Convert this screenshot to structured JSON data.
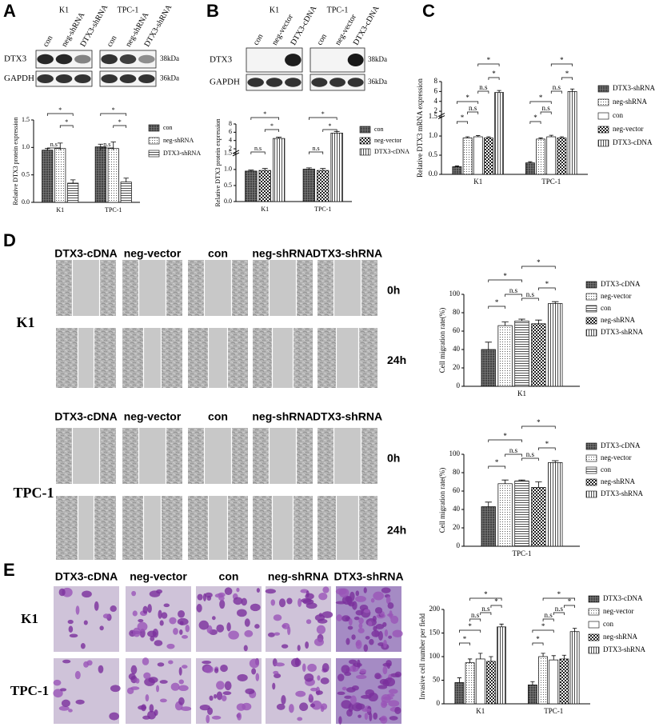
{
  "panel_labels": [
    "A",
    "B",
    "C",
    "D",
    "E"
  ],
  "blots": [
    {
      "groups": [
        "K1",
        "TPC-1"
      ],
      "lanes": [
        "con",
        "neg-shRNA",
        "DTX3-shRNA"
      ],
      "proteins": [
        "DTX3",
        "GAPDH"
      ],
      "sizes": [
        "38kDa",
        "36kDa"
      ]
    },
    {
      "groups": [
        "K1",
        "TPC-1"
      ],
      "lanes": [
        "con",
        "neg-vector",
        "DTX3-cDNA"
      ],
      "proteins": [
        "DTX3",
        "GAPDH"
      ],
      "sizes": [
        "38kDa",
        "36kDa"
      ]
    }
  ],
  "migration": {
    "columns": [
      "DTX3-cDNA",
      "neg-vector",
      "con",
      "neg-shRNA",
      "DTX3-shRNA"
    ],
    "rows": [
      "K1",
      "TPC-1"
    ],
    "times": [
      "0h",
      "24h"
    ]
  },
  "invasion": {
    "columns": [
      "DTX3-cDNA",
      "neg-vector",
      "con",
      "neg-shRNA",
      "DTX3-shRNA"
    ],
    "rows": [
      "K1",
      "TPC-1"
    ]
  },
  "chart_data": [
    {
      "type": "bar",
      "ylabel": "Relative DTX3 protein expression",
      "categories": [
        "K1",
        "TPC-1"
      ],
      "series": [
        {
          "name": "con",
          "pattern": "dark-grid",
          "values": [
            0.95,
            1.01
          ],
          "errors": [
            0.03,
            0.05
          ]
        },
        {
          "name": "neg-shRNA",
          "pattern": "dots",
          "values": [
            0.98,
            0.98
          ],
          "errors": [
            0.1,
            0.12
          ]
        },
        {
          "name": "DTX3-shRNA",
          "pattern": "hlines",
          "values": [
            0.35,
            0.37
          ],
          "errors": [
            0.06,
            0.07
          ]
        }
      ],
      "ylim": [
        0,
        1.5
      ],
      "yticks": [
        {
          "value": 0,
          "label": "0.0"
        },
        0.5,
        {
          "value": 1,
          "label": "1.0"
        },
        1.5
      ],
      "annotations": [
        "*",
        "*",
        "n.s",
        "*",
        "*",
        "n.s"
      ]
    },
    {
      "type": "bar",
      "ylabel": "Relative DTX3 protein expression",
      "categories": [
        "K1",
        "TPC-1"
      ],
      "series": [
        {
          "name": "con",
          "pattern": "dark-grid",
          "values": [
            0.95,
            1.01
          ],
          "errors": [
            0.03,
            0.04
          ]
        },
        {
          "name": "neg-vector",
          "pattern": "checker",
          "values": [
            0.97,
            0.97
          ],
          "errors": [
            0.06,
            0.06
          ]
        },
        {
          "name": "DTX3-cDNA",
          "pattern": "vlines",
          "values": [
            4.5,
            5.8
          ],
          "errors": [
            0.3,
            0.4
          ]
        }
      ],
      "ylim": [
        0,
        8
      ],
      "ysegments": [
        [
          0,
          1.5
        ],
        [
          2,
          8
        ]
      ],
      "yticks": [
        {
          "value": 0,
          "label": "0.0"
        },
        0.5,
        {
          "value": 1,
          "label": "1.0"
        },
        1.5,
        2,
        4,
        6,
        8
      ],
      "annotations": [
        "*",
        "*",
        "n.s",
        "*",
        "*",
        "n.s"
      ]
    },
    {
      "type": "bar",
      "ylabel": "Relative DTX3 mRNA expression",
      "categories": [
        "K1",
        "TPC-1"
      ],
      "series": [
        {
          "name": "DTX3-shRNA",
          "pattern": "dark-grid",
          "values": [
            0.2,
            0.3
          ],
          "errors": [
            0.02,
            0.03
          ]
        },
        {
          "name": "neg-shRNA",
          "pattern": "dots",
          "values": [
            0.95,
            0.92
          ],
          "errors": [
            0.03,
            0.03
          ]
        },
        {
          "name": "con",
          "pattern": "white",
          "values": [
            0.98,
            0.98
          ],
          "errors": [
            0.03,
            0.04
          ]
        },
        {
          "name": "neg-vector",
          "pattern": "checker",
          "values": [
            0.95,
            0.95
          ],
          "errors": [
            0.03,
            0.03
          ]
        },
        {
          "name": "DTX3-cDNA",
          "pattern": "vlines",
          "values": [
            5.8,
            6.0
          ],
          "errors": [
            0.4,
            0.5
          ]
        }
      ],
      "ylim": [
        0,
        8
      ],
      "ysegments": [
        [
          0,
          1.5
        ],
        [
          2,
          8
        ]
      ],
      "yticks": [
        {
          "value": 0,
          "label": "0.0"
        },
        0.5,
        {
          "value": 1,
          "label": "1.0"
        },
        1.5,
        2,
        4,
        6,
        8
      ],
      "annotations": [
        "*",
        "*",
        "n.s",
        "n.s",
        "*",
        "*",
        "*",
        "*",
        "n.s",
        "n.s",
        "*",
        "*"
      ]
    },
    {
      "type": "bar",
      "ylabel": "Cell migration rate(%)",
      "categories": [
        "K1"
      ],
      "series": [
        {
          "name": "DTX3-cDNA",
          "pattern": "dark-grid",
          "values": [
            40
          ],
          "errors": [
            8
          ]
        },
        {
          "name": "neg-vector",
          "pattern": "dots",
          "values": [
            66
          ],
          "errors": [
            4
          ]
        },
        {
          "name": "con",
          "pattern": "hlines",
          "values": [
            71
          ],
          "errors": [
            2
          ]
        },
        {
          "name": "neg-shRNA",
          "pattern": "checker",
          "values": [
            68
          ],
          "errors": [
            4
          ]
        },
        {
          "name": "DTX3-shRNA",
          "pattern": "vlines",
          "values": [
            90
          ],
          "errors": [
            2
          ]
        }
      ],
      "ylim": [
        0,
        100
      ],
      "yticks": [
        0,
        20,
        40,
        60,
        80,
        100
      ],
      "annotations": [
        "*",
        "*",
        "n.s",
        "n.s",
        "*",
        "*"
      ]
    },
    {
      "type": "bar",
      "ylabel": "Cell migration rate(%)",
      "categories": [
        "TPC-1"
      ],
      "series": [
        {
          "name": "DTX3-cDNA",
          "pattern": "dark-grid",
          "values": [
            43
          ],
          "errors": [
            5
          ]
        },
        {
          "name": "neg-vector",
          "pattern": "dots",
          "values": [
            68
          ],
          "errors": [
            4
          ]
        },
        {
          "name": "con",
          "pattern": "hlines",
          "values": [
            71
          ],
          "errors": [
            1
          ]
        },
        {
          "name": "neg-shRNA",
          "pattern": "checker",
          "values": [
            64
          ],
          "errors": [
            6
          ]
        },
        {
          "name": "DTX3-shRNA",
          "pattern": "vlines",
          "values": [
            91
          ],
          "errors": [
            2
          ]
        }
      ],
      "ylim": [
        0,
        100
      ],
      "yticks": [
        0,
        20,
        40,
        60,
        80,
        100
      ],
      "annotations": [
        "*",
        "*",
        "n.s",
        "n.s",
        "*",
        "*"
      ]
    },
    {
      "type": "bar",
      "ylabel": "Invasive cell number per field",
      "categories": [
        "K1",
        "TPC-1"
      ],
      "series": [
        {
          "name": "DTX3-cDNA",
          "pattern": "dark-grid",
          "values": [
            45,
            40
          ],
          "errors": [
            10,
            7
          ]
        },
        {
          "name": "neg-vector",
          "pattern": "dots",
          "values": [
            87,
            100
          ],
          "errors": [
            8,
            7
          ]
        },
        {
          "name": "con",
          "pattern": "white",
          "values": [
            95,
            93
          ],
          "errors": [
            12,
            9
          ]
        },
        {
          "name": "neg-shRNA",
          "pattern": "checker",
          "values": [
            90,
            95
          ],
          "errors": [
            10,
            8
          ]
        },
        {
          "name": "DTX3-shRNA",
          "pattern": "vlines",
          "values": [
            163,
            153
          ],
          "errors": [
            6,
            7
          ]
        }
      ],
      "ylim": [
        0,
        200
      ],
      "yticks": [
        0,
        50,
        100,
        150,
        200
      ],
      "annotations": [
        "*",
        "*",
        "n.s",
        "n.s",
        "*",
        "*",
        "*",
        "*",
        "n.s",
        "n.s",
        "*",
        "*"
      ]
    }
  ]
}
